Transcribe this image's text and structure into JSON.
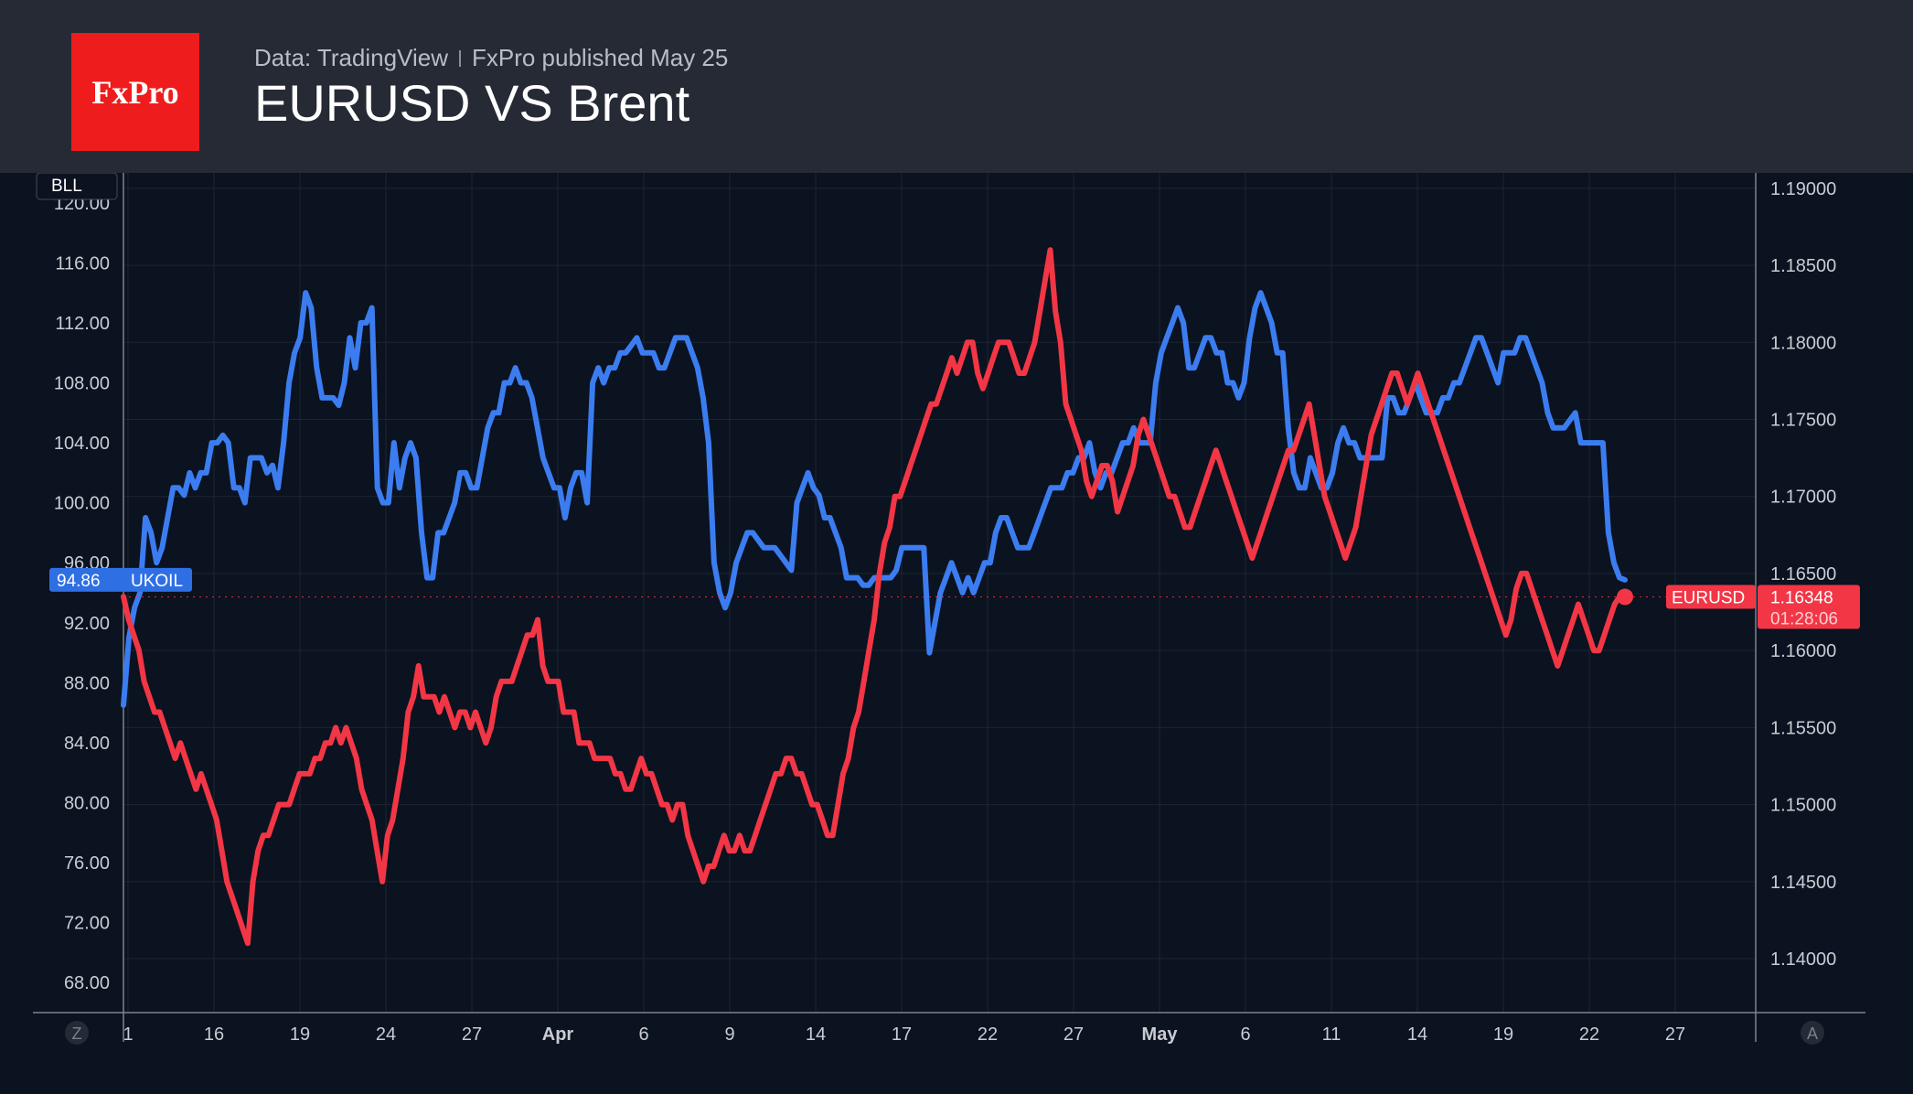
{
  "header": {
    "logo_text": "FxPro",
    "source": "Data: TradingView",
    "published": "FxPro published May 25",
    "title": "EURUSD VS Brent"
  },
  "chart_data": {
    "type": "line",
    "title": "EURUSD VS Brent",
    "grid": true,
    "x_ticks": [
      "1",
      "16",
      "19",
      "24",
      "27",
      "Apr",
      "6",
      "9",
      "14",
      "17",
      "22",
      "27",
      "May",
      "6",
      "11",
      "14",
      "19",
      "22",
      "27"
    ],
    "left_axis": {
      "label": "BLL",
      "ticks": [
        "68.00",
        "72.00",
        "76.00",
        "80.00",
        "84.00",
        "88.00",
        "92.00",
        "96.00",
        "100.00",
        "104.00",
        "108.00",
        "112.00",
        "116.00",
        "120.00"
      ],
      "range": [
        66,
        122
      ]
    },
    "right_axis": {
      "ticks": [
        "1.14000",
        "1.14500",
        "1.15000",
        "1.15500",
        "1.16000",
        "1.16500",
        "1.17000",
        "1.17500",
        "1.18000",
        "1.18500",
        "1.19000"
      ],
      "range": [
        1.1365,
        1.191
      ]
    },
    "series": [
      {
        "name": "UKOIL",
        "axis": "left",
        "color": "#3b7df0",
        "last_value": "94.86",
        "values": [
          86.5,
          91,
          93,
          94,
          99,
          98,
          96,
          97,
          99,
          101,
          101,
          100.5,
          102,
          101,
          102,
          102,
          104,
          104,
          104.5,
          104,
          101,
          101,
          100,
          103,
          103,
          103,
          102,
          102.5,
          101,
          104,
          108,
          110,
          111,
          114,
          113,
          109,
          107,
          107,
          107,
          106.5,
          108,
          111,
          109,
          112,
          112,
          113,
          101,
          100,
          100,
          104,
          101,
          103,
          104,
          103,
          98,
          95,
          95,
          98,
          98,
          99,
          100,
          102,
          102,
          101,
          101,
          103,
          105,
          106,
          106,
          108,
          108,
          109,
          108,
          108,
          107,
          105,
          103,
          102,
          101,
          101,
          99,
          101,
          102,
          102,
          100,
          108,
          109,
          108,
          109,
          109,
          110,
          110,
          110.5,
          111,
          110,
          110,
          110,
          109,
          109,
          110,
          111,
          111,
          111,
          110,
          109,
          107,
          104,
          96,
          94,
          93,
          94,
          96,
          97,
          98,
          98,
          97.5,
          97,
          97,
          97,
          96.5,
          96,
          95.5,
          100,
          101,
          102,
          101,
          100.5,
          99,
          99,
          98,
          97,
          95,
          95,
          95,
          94.5,
          94.5,
          95,
          95,
          95,
          95,
          95.5,
          97,
          97,
          97,
          97,
          97,
          90,
          92,
          94,
          95,
          96,
          95,
          94,
          95,
          94,
          95,
          96,
          96,
          98,
          99,
          99,
          98,
          97,
          97,
          97,
          98,
          99,
          100,
          101,
          101,
          101,
          102,
          102,
          103,
          103,
          104,
          102,
          101,
          102,
          102,
          103,
          104,
          104,
          105,
          104,
          104,
          104,
          108,
          110,
          111,
          112,
          113,
          112,
          109,
          109,
          110,
          111,
          111,
          110,
          110,
          108,
          108,
          107,
          108,
          111,
          113,
          114,
          113,
          112,
          110,
          110,
          105,
          102,
          101,
          101,
          103,
          102,
          101,
          101,
          102,
          104,
          105,
          104,
          104,
          103,
          103,
          103,
          103,
          103,
          107,
          107,
          106,
          106,
          107,
          108,
          107,
          106,
          106,
          106,
          107,
          107,
          108,
          108,
          109,
          110,
          111,
          111,
          110,
          109,
          108,
          110,
          110,
          110,
          111,
          111,
          110,
          109,
          108,
          106,
          105,
          105,
          105,
          105.5,
          106,
          104,
          104,
          104,
          104,
          104,
          98,
          96,
          95,
          94.86
        ]
      },
      {
        "name": "EURUSD",
        "axis": "right",
        "color": "#f23645",
        "last_value": "1.16348",
        "countdown": "01:28:06",
        "values": [
          1.1635,
          1.162,
          1.161,
          1.16,
          1.158,
          1.157,
          1.156,
          1.156,
          1.155,
          1.154,
          1.153,
          1.154,
          1.153,
          1.152,
          1.151,
          1.152,
          1.151,
          1.15,
          1.149,
          1.147,
          1.145,
          1.144,
          1.143,
          1.142,
          1.141,
          1.145,
          1.147,
          1.148,
          1.148,
          1.149,
          1.15,
          1.15,
          1.15,
          1.151,
          1.152,
          1.152,
          1.152,
          1.153,
          1.153,
          1.154,
          1.154,
          1.155,
          1.154,
          1.155,
          1.154,
          1.153,
          1.151,
          1.15,
          1.149,
          1.147,
          1.145,
          1.148,
          1.149,
          1.151,
          1.153,
          1.156,
          1.157,
          1.159,
          1.157,
          1.157,
          1.157,
          1.156,
          1.157,
          1.156,
          1.155,
          1.156,
          1.156,
          1.155,
          1.156,
          1.155,
          1.154,
          1.155,
          1.157,
          1.158,
          1.158,
          1.158,
          1.159,
          1.16,
          1.161,
          1.161,
          1.162,
          1.159,
          1.158,
          1.158,
          1.158,
          1.156,
          1.156,
          1.156,
          1.154,
          1.154,
          1.154,
          1.153,
          1.153,
          1.153,
          1.153,
          1.152,
          1.152,
          1.151,
          1.151,
          1.152,
          1.153,
          1.152,
          1.152,
          1.151,
          1.15,
          1.15,
          1.149,
          1.15,
          1.15,
          1.148,
          1.147,
          1.146,
          1.145,
          1.146,
          1.146,
          1.147,
          1.148,
          1.147,
          1.147,
          1.148,
          1.147,
          1.147,
          1.148,
          1.149,
          1.15,
          1.151,
          1.152,
          1.152,
          1.153,
          1.153,
          1.152,
          1.152,
          1.151,
          1.15,
          1.15,
          1.149,
          1.148,
          1.148,
          1.15,
          1.152,
          1.153,
          1.155,
          1.156,
          1.158,
          1.16,
          1.162,
          1.165,
          1.167,
          1.168,
          1.17,
          1.17,
          1.171,
          1.172,
          1.173,
          1.174,
          1.175,
          1.176,
          1.176,
          1.177,
          1.178,
          1.179,
          1.178,
          1.179,
          1.18,
          1.18,
          1.178,
          1.177,
          1.178,
          1.179,
          1.18,
          1.18,
          1.18,
          1.179,
          1.178,
          1.178,
          1.179,
          1.18,
          1.182,
          1.184,
          1.186,
          1.182,
          1.18,
          1.176,
          1.175,
          1.174,
          1.173,
          1.171,
          1.17,
          1.171,
          1.172,
          1.172,
          1.171,
          1.169,
          1.17,
          1.171,
          1.172,
          1.174,
          1.175,
          1.174,
          1.173,
          1.172,
          1.171,
          1.17,
          1.17,
          1.169,
          1.168,
          1.168,
          1.169,
          1.17,
          1.171,
          1.172,
          1.173,
          1.172,
          1.171,
          1.17,
          1.169,
          1.168,
          1.167,
          1.166,
          1.167,
          1.168,
          1.169,
          1.17,
          1.171,
          1.172,
          1.173,
          1.173,
          1.174,
          1.175,
          1.176,
          1.174,
          1.172,
          1.17,
          1.169,
          1.168,
          1.167,
          1.166,
          1.167,
          1.168,
          1.17,
          1.172,
          1.174,
          1.175,
          1.176,
          1.177,
          1.178,
          1.178,
          1.177,
          1.176,
          1.177,
          1.178,
          1.177,
          1.176,
          1.175,
          1.174,
          1.173,
          1.172,
          1.171,
          1.17,
          1.169,
          1.168,
          1.167,
          1.166,
          1.165,
          1.164,
          1.163,
          1.162,
          1.161,
          1.162,
          1.164,
          1.165,
          1.165,
          1.164,
          1.163,
          1.162,
          1.161,
          1.16,
          1.159,
          1.16,
          1.161,
          1.162,
          1.163,
          1.162,
          1.161,
          1.16,
          1.16,
          1.161,
          1.162,
          1.163,
          1.1635,
          1.16348
        ]
      }
    ]
  },
  "toolbar": {
    "left_button": "Z",
    "right_button": "A"
  }
}
